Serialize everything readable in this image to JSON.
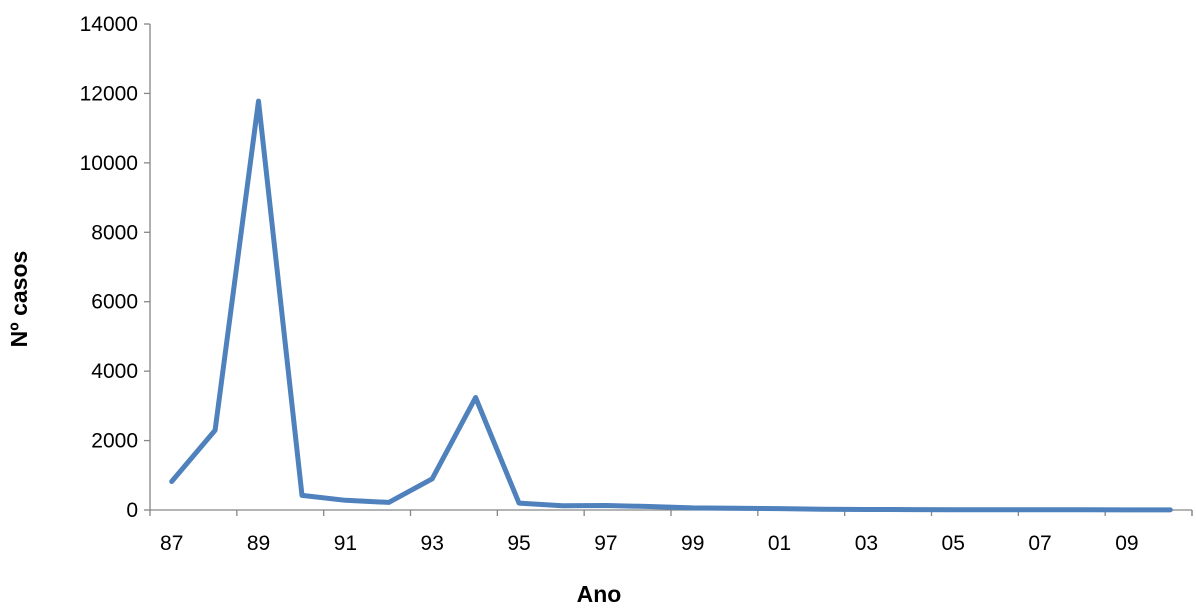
{
  "chart_data": {
    "type": "line",
    "xlabel": "Ano",
    "ylabel": "Nº casos",
    "ylim": [
      0,
      14000
    ],
    "yticks": [
      0,
      2000,
      4000,
      6000,
      8000,
      10000,
      12000,
      14000
    ],
    "categories": [
      "87",
      "88",
      "89",
      "90",
      "91",
      "92",
      "93",
      "94",
      "95",
      "96",
      "97",
      "98",
      "99",
      "00",
      "01",
      "02",
      "03",
      "04",
      "05",
      "06",
      "07",
      "08",
      "09",
      "10"
    ],
    "tick_labels": [
      "87",
      "89",
      "91",
      "93",
      "95",
      "97",
      "99",
      "01",
      "03",
      "05",
      "07",
      "09"
    ],
    "grid": false,
    "legend": "none",
    "series": [
      {
        "color": "#4F81BD",
        "values": [
          820,
          2300,
          11780,
          420,
          280,
          220,
          900,
          3240,
          200,
          120,
          130,
          100,
          60,
          50,
          40,
          20,
          15,
          12,
          10,
          8,
          6,
          5,
          4,
          3
        ]
      }
    ]
  }
}
